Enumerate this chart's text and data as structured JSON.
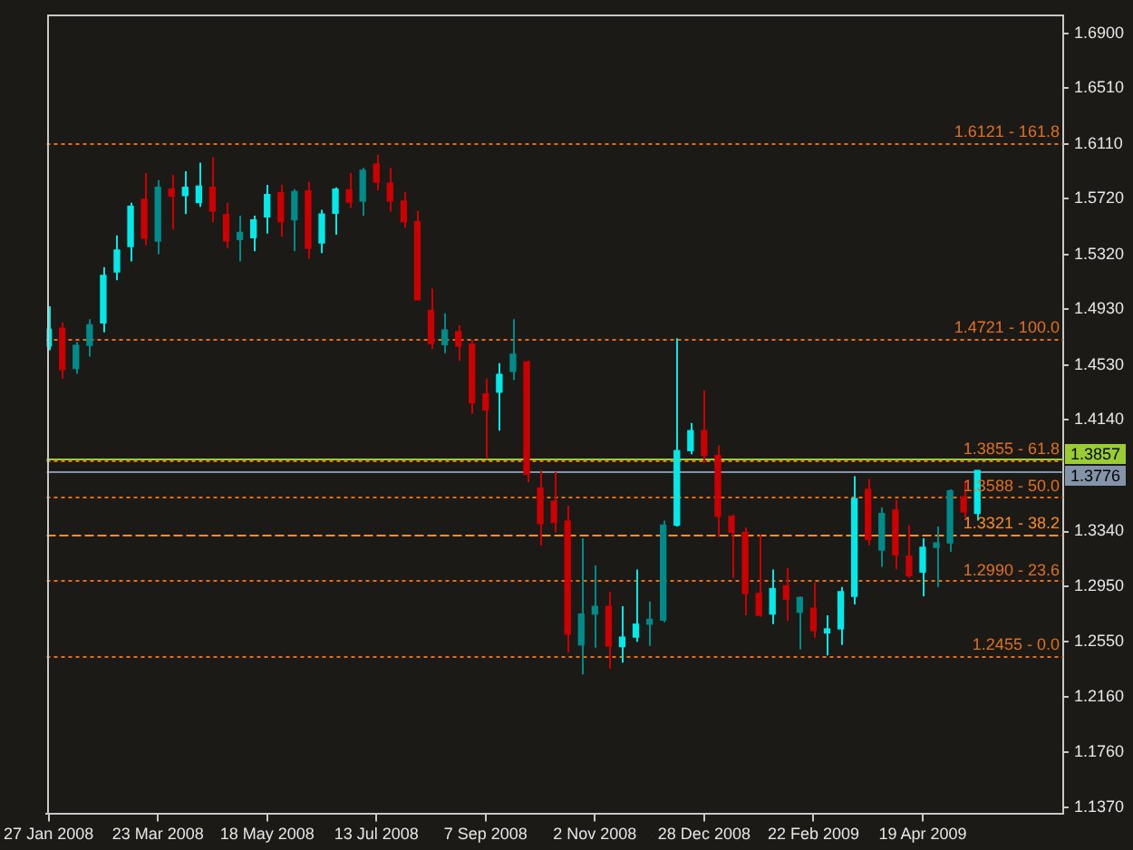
{
  "chart_data": {
    "type": "candlestick",
    "x": [
      "2008-01-27",
      "2008-02-03",
      "2008-02-10",
      "2008-02-17",
      "2008-02-24",
      "2008-03-02",
      "2008-03-09",
      "2008-03-16",
      "2008-03-23",
      "2008-03-30",
      "2008-04-06",
      "2008-04-13",
      "2008-04-20",
      "2008-04-27",
      "2008-05-04",
      "2008-05-11",
      "2008-05-18",
      "2008-05-25",
      "2008-06-01",
      "2008-06-08",
      "2008-06-15",
      "2008-06-22",
      "2008-06-29",
      "2008-07-06",
      "2008-07-13",
      "2008-07-20",
      "2008-07-27",
      "2008-08-03",
      "2008-08-10",
      "2008-08-17",
      "2008-08-24",
      "2008-08-31",
      "2008-09-07",
      "2008-09-14",
      "2008-09-21",
      "2008-09-28",
      "2008-10-05",
      "2008-10-12",
      "2008-10-19",
      "2008-10-26",
      "2008-11-02",
      "2008-11-09",
      "2008-11-16",
      "2008-11-23",
      "2008-11-30",
      "2008-12-07",
      "2008-12-14",
      "2008-12-21",
      "2008-12-28",
      "2009-01-04",
      "2009-01-11",
      "2009-01-18",
      "2009-01-25",
      "2009-02-01",
      "2009-02-08",
      "2009-02-15",
      "2009-02-22",
      "2009-03-01",
      "2009-03-08",
      "2009-03-15",
      "2009-03-22",
      "2009-03-29",
      "2009-04-05",
      "2009-04-12",
      "2009-04-19",
      "2009-04-26",
      "2009-05-03",
      "2009-05-10",
      "2009-05-17"
    ],
    "ohlc": [
      [
        1.4666,
        1.495,
        1.4636,
        1.4785
      ],
      [
        1.4793,
        1.4835,
        1.4433,
        1.4497
      ],
      [
        1.4505,
        1.4696,
        1.4467,
        1.467
      ],
      [
        1.467,
        1.4857,
        1.459,
        1.4818
      ],
      [
        1.4831,
        1.5229,
        1.4763,
        1.517
      ],
      [
        1.5195,
        1.5457,
        1.5136,
        1.5351
      ],
      [
        1.5377,
        1.569,
        1.5271,
        1.5664
      ],
      [
        1.5715,
        1.5901,
        1.5385,
        1.5436
      ],
      [
        1.5415,
        1.5851,
        1.5322,
        1.58
      ],
      [
        1.5787,
        1.5889,
        1.5499,
        1.5736
      ],
      [
        1.5741,
        1.5914,
        1.5609,
        1.58
      ],
      [
        1.569,
        1.5977,
        1.566,
        1.5808
      ],
      [
        1.58,
        1.6015,
        1.555,
        1.5631
      ],
      [
        1.5605,
        1.569,
        1.5364,
        1.5415
      ],
      [
        1.5427,
        1.5597,
        1.5271,
        1.5478
      ],
      [
        1.544,
        1.5597,
        1.5343,
        1.5567
      ],
      [
        1.5588,
        1.5817,
        1.547,
        1.5749
      ],
      [
        1.5762,
        1.5817,
        1.5449,
        1.5554
      ],
      [
        1.5567,
        1.5787,
        1.5343,
        1.577
      ],
      [
        1.5774,
        1.5838,
        1.5292,
        1.5364
      ],
      [
        1.5402,
        1.5639,
        1.533,
        1.5609
      ],
      [
        1.5614,
        1.58,
        1.5461,
        1.5787
      ],
      [
        1.5783,
        1.5901,
        1.5652,
        1.5694
      ],
      [
        1.5702,
        1.5939,
        1.5597,
        1.5922
      ],
      [
        1.5965,
        1.6032,
        1.5779,
        1.5838
      ],
      [
        1.5829,
        1.5939,
        1.5626,
        1.5702
      ],
      [
        1.5702,
        1.5766,
        1.5512,
        1.5554
      ],
      [
        1.5554,
        1.5631,
        1.4992,
        1.4996
      ],
      [
        1.492,
        1.5076,
        1.4645,
        1.4683
      ],
      [
        1.4675,
        1.4899,
        1.4615,
        1.478
      ],
      [
        1.4768,
        1.4814,
        1.456,
        1.4666
      ],
      [
        1.4679,
        1.4708,
        1.418,
        1.426
      ],
      [
        1.4323,
        1.4433,
        1.3858,
        1.4209
      ],
      [
        1.4336,
        1.4543,
        1.4061,
        1.4463
      ],
      [
        1.4484,
        1.4857,
        1.4421,
        1.4607
      ],
      [
        1.4552,
        1.456,
        1.3693,
        1.3748
      ],
      [
        1.3651,
        1.3778,
        1.324,
        1.3397
      ],
      [
        1.3557,
        1.3766,
        1.3334,
        1.3405
      ],
      [
        1.3414,
        1.3524,
        1.2475,
        1.2606
      ],
      [
        1.2529,
        1.3291,
        1.2319,
        1.275
      ],
      [
        1.275,
        1.3097,
        1.2509,
        1.2805
      ],
      [
        1.2805,
        1.291,
        1.2361,
        1.2522
      ],
      [
        1.2517,
        1.2805,
        1.2402,
        1.2585
      ],
      [
        1.2585,
        1.3068,
        1.2551,
        1.2678
      ],
      [
        1.2678,
        1.2839,
        1.2522,
        1.2712
      ],
      [
        1.2707,
        1.3418,
        1.2691,
        1.3385
      ],
      [
        1.3385,
        1.4721,
        1.3376,
        1.3918
      ],
      [
        1.3918,
        1.4116,
        1.3892,
        1.4061
      ],
      [
        1.4061,
        1.4349,
        1.3829,
        1.3884
      ],
      [
        1.3884,
        1.3956,
        1.33,
        1.3448
      ],
      [
        1.3448,
        1.3461,
        1.3008,
        1.3334
      ],
      [
        1.3334,
        1.3367,
        1.2741,
        1.2897
      ],
      [
        1.2897,
        1.3321,
        1.2729,
        1.2741
      ],
      [
        1.275,
        1.3068,
        1.2678,
        1.2932
      ],
      [
        1.2953,
        1.308,
        1.27,
        1.2856
      ],
      [
        1.2763,
        1.2877,
        1.2496,
        1.2868
      ],
      [
        1.2792,
        1.2974,
        1.258,
        1.2631
      ],
      [
        1.2615,
        1.2741,
        1.2455,
        1.2644
      ],
      [
        1.2644,
        1.2944,
        1.2529,
        1.291
      ],
      [
        1.2877,
        1.3735,
        1.2818,
        1.3575
      ],
      [
        1.3642,
        1.3715,
        1.324,
        1.3283
      ],
      [
        1.3207,
        1.3512,
        1.3088,
        1.3469
      ],
      [
        1.3494,
        1.3566,
        1.3071,
        1.3173
      ],
      [
        1.3164,
        1.3385,
        1.3008,
        1.3024
      ],
      [
        1.305,
        1.3291,
        1.2877,
        1.3227
      ],
      [
        1.3227,
        1.3376,
        1.2944,
        1.3258
      ],
      [
        1.3258,
        1.3642,
        1.3194,
        1.363
      ],
      [
        1.3588,
        1.3702,
        1.3439,
        1.3481
      ],
      [
        1.3469,
        1.3778,
        1.3418,
        1.3776
      ]
    ],
    "colors": [
      "#00eaea",
      "#cc0000",
      "#008b8b",
      "#008b8b",
      "#00eaea",
      "#00eaea",
      "#00eaea",
      "#cc0000",
      "#008b8b",
      "#cc0000",
      "#00eaea",
      "#00eaea",
      "#cc0000",
      "#cc0000",
      "#008b8b",
      "#00eaea",
      "#00eaea",
      "#cc0000",
      "#008b8b",
      "#cc0000",
      "#00eaea",
      "#00eaea",
      "#cc0000",
      "#008b8b",
      "#cc0000",
      "#cc0000",
      "#cc0000",
      "#cc0000",
      "#cc0000",
      "#008b8b",
      "#cc0000",
      "#cc0000",
      "#cc0000",
      "#00eaea",
      "#008b8b",
      "#cc0000",
      "#cc0000",
      "#cc0000",
      "#cc0000",
      "#008b8b",
      "#008b8b",
      "#cc0000",
      "#00eaea",
      "#00eaea",
      "#008b8b",
      "#008b8b",
      "#00eaea",
      "#00eaea",
      "#cc0000",
      "#cc0000",
      "#cc0000",
      "#cc0000",
      "#cc0000",
      "#00eaea",
      "#cc0000",
      "#008b8b",
      "#cc0000",
      "#00eaea",
      "#00eaea",
      "#00eaea",
      "#cc0000",
      "#008b8b",
      "#cc0000",
      "#cc0000",
      "#00eaea",
      "#008b8b",
      "#008b8b",
      "#cc0000",
      "#00eaea"
    ],
    "xlim": [
      "2008-01-26",
      "2009-06-30"
    ],
    "xticks": [
      {
        "value": "2008-01-27",
        "label": "27 Jan 2008"
      },
      {
        "value": "2008-03-23",
        "label": "23 Mar 2008"
      },
      {
        "value": "2008-05-18",
        "label": "18 May 2008"
      },
      {
        "value": "2008-07-13",
        "label": "13 Jul 2008"
      },
      {
        "value": "2008-09-07",
        "label": "7 Sep 2008"
      },
      {
        "value": "2008-11-02",
        "label": "2 Nov 2008"
      },
      {
        "value": "2008-12-28",
        "label": "28 Dec 2008"
      },
      {
        "value": "2009-02-22",
        "label": "22 Feb 2009"
      },
      {
        "value": "2009-04-19",
        "label": "19 Apr 2009"
      }
    ],
    "ylim": [
      1.132,
      1.703
    ],
    "yticks": [
      {
        "value": 1.69,
        "label": "1.6900"
      },
      {
        "value": 1.651,
        "label": "1.6510"
      },
      {
        "value": 1.611,
        "label": "1.6110"
      },
      {
        "value": 1.572,
        "label": "1.5720"
      },
      {
        "value": 1.532,
        "label": "1.5320"
      },
      {
        "value": 1.493,
        "label": "1.4930"
      },
      {
        "value": 1.453,
        "label": "1.4530"
      },
      {
        "value": 1.414,
        "label": "1.4140"
      },
      {
        "value": 1.334,
        "label": "1.3340"
      },
      {
        "value": 1.295,
        "label": "1.2950"
      },
      {
        "value": 1.255,
        "label": "1.2550"
      },
      {
        "value": 1.216,
        "label": "1.2160"
      },
      {
        "value": 1.176,
        "label": "1.1760"
      },
      {
        "value": 1.137,
        "label": "1.1370"
      }
    ],
    "ref_lines": [
      {
        "axis": "y",
        "value": 1.6121,
        "label": "1.6121 - 161.8",
        "color": "#e0701c",
        "line_style": "dotted"
      },
      {
        "axis": "y",
        "value": 1.4721,
        "label": "1.4721 - 100.0",
        "color": "#e0701c",
        "line_style": "dotted"
      },
      {
        "axis": "y",
        "value": 1.3855,
        "label": "1.3855 - 61.8",
        "color": "#e0701c",
        "line_style": "dotted"
      },
      {
        "axis": "y",
        "value": 1.3588,
        "label": "1.3588 - 50.0",
        "color": "#e0701c",
        "line_style": "dotted"
      },
      {
        "axis": "y",
        "value": 1.3321,
        "label": "1.3321 - 38.2",
        "color": "#ff8c1a",
        "line_style": "dashed"
      },
      {
        "axis": "y",
        "value": 1.299,
        "label": "1.2990 - 23.6",
        "color": "#e0701c",
        "line_style": "dotted"
      },
      {
        "axis": "y",
        "value": 1.2455,
        "label": "1.2455 - 0.0",
        "color": "#e0701c",
        "line_style": "dotted"
      },
      {
        "axis": "y",
        "value": 1.3857,
        "label": "1.3857",
        "color": "#9acd32",
        "line_style": "solid"
      },
      {
        "axis": "y",
        "value": 1.3776,
        "label": "1.3776",
        "color": "#8494a8",
        "line_style": "solid"
      }
    ]
  }
}
